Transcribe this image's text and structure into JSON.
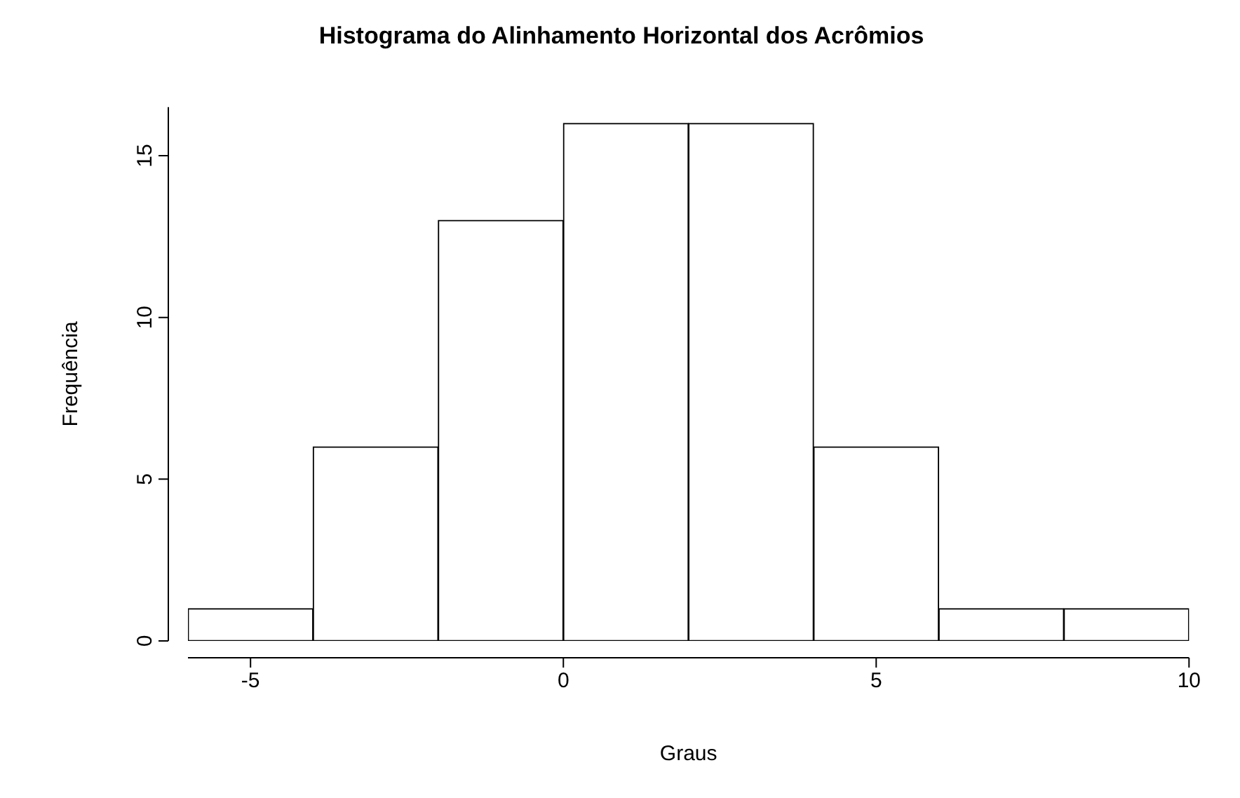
{
  "chart_data": {
    "type": "histogram",
    "title": "Histograma do Alinhamento Horizontal dos Acrômios",
    "xlabel": "Graus",
    "ylabel": "Frequência",
    "bins": [
      -6,
      -4,
      -2,
      0,
      2,
      4,
      6,
      8,
      10
    ],
    "values": [
      1,
      6,
      13,
      16,
      16,
      6,
      1,
      1
    ],
    "color": "#ffffff",
    "xlim": [
      -6,
      10
    ],
    "xticks": [
      -5,
      0,
      5,
      10
    ],
    "ylim": [
      0,
      16.5
    ],
    "yticks": [
      0,
      5,
      10,
      15
    ],
    "grid": false,
    "legend": false
  }
}
